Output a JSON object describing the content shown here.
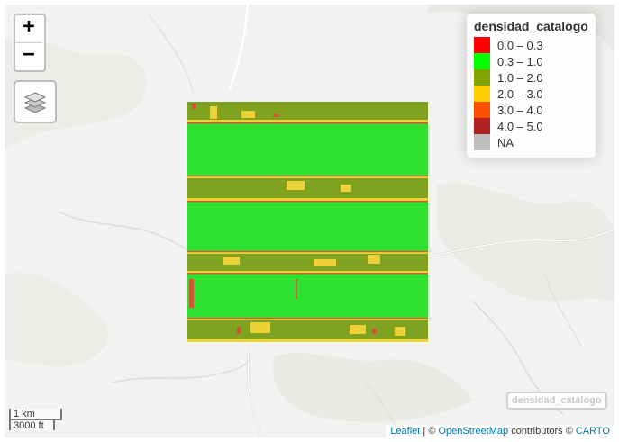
{
  "legend": {
    "title": "densidad_catalogo",
    "items": [
      {
        "label": "0.0 – 0.3",
        "color": "#ff0000"
      },
      {
        "label": "0.3 – 1.0",
        "color": "#00ff00"
      },
      {
        "label": "1.0 – 2.0",
        "color": "#7fa300"
      },
      {
        "label": "2.0 – 3.0",
        "color": "#ffcc00"
      },
      {
        "label": "3.0 – 4.0",
        "color": "#ff4f00"
      },
      {
        "label": "4.0 – 5.0",
        "color": "#b22222"
      },
      {
        "label": "NA",
        "color": "#bebebe"
      }
    ]
  },
  "zoom": {
    "in_label": "+",
    "out_label": "−"
  },
  "layers_control": {
    "icon": "layers-icon"
  },
  "scale": {
    "metric": "1 km",
    "imperial": "3000 ft"
  },
  "layer_toggle_label": "densidad_catalogo",
  "attribution": {
    "leaflet": "Leaflet",
    "sep1": " | © ",
    "osm": "OpenStreetMap",
    "contrib": " contributors © ",
    "carto": "CARTO"
  },
  "raster_colors": {
    "high_density_band": "#2fe12f",
    "medium_band": "#7fa321",
    "edge_yellow": "#f2d43a",
    "edge_red": "#e8443a"
  }
}
